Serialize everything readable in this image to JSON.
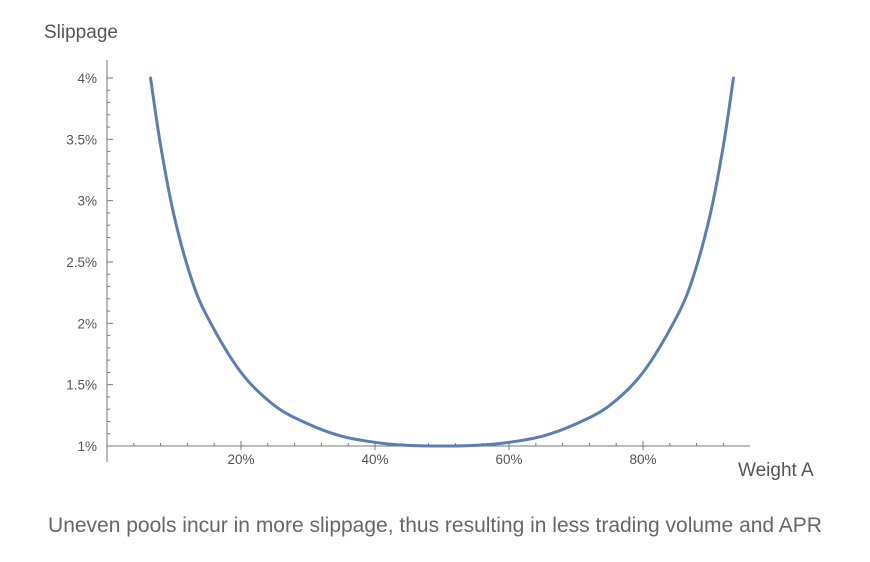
{
  "chart_data": {
    "type": "line",
    "ylabel": "Slippage",
    "xlabel": "Weight A",
    "x_ticks": [
      {
        "value": 0.2,
        "label": "20%"
      },
      {
        "value": 0.4,
        "label": "40%"
      },
      {
        "value": 0.6,
        "label": "60%"
      },
      {
        "value": 0.8,
        "label": "80%"
      }
    ],
    "y_ticks": [
      {
        "value": 1.0,
        "label": "1%"
      },
      {
        "value": 1.5,
        "label": "1.5%"
      },
      {
        "value": 2.0,
        "label": "2%"
      },
      {
        "value": 2.5,
        "label": "2.5%"
      },
      {
        "value": 3.0,
        "label": "3%"
      },
      {
        "value": 3.5,
        "label": "3.5%"
      },
      {
        "value": 4.0,
        "label": "4%"
      }
    ],
    "xlim": [
      0,
      0.97
    ],
    "ylim": [
      1.0,
      4.0
    ],
    "series": [
      {
        "color": "#5b7db1",
        "x": [
          0.065,
          0.08,
          0.1,
          0.125,
          0.15,
          0.2,
          0.25,
          0.3,
          0.35,
          0.4,
          0.45,
          0.5,
          0.55,
          0.6,
          0.65,
          0.7,
          0.75,
          0.8,
          0.85,
          0.875,
          0.9,
          0.92,
          0.935
        ],
        "y": [
          4.0,
          3.45,
          2.88,
          2.38,
          2.05,
          1.6,
          1.33,
          1.18,
          1.08,
          1.03,
          1.005,
          1.0,
          1.005,
          1.03,
          1.08,
          1.18,
          1.33,
          1.6,
          2.05,
          2.38,
          2.88,
          3.45,
          4.0
        ]
      }
    ],
    "grid": false
  },
  "caption": "Uneven pools incur in more slippage, thus resulting in less trading volume and APR"
}
